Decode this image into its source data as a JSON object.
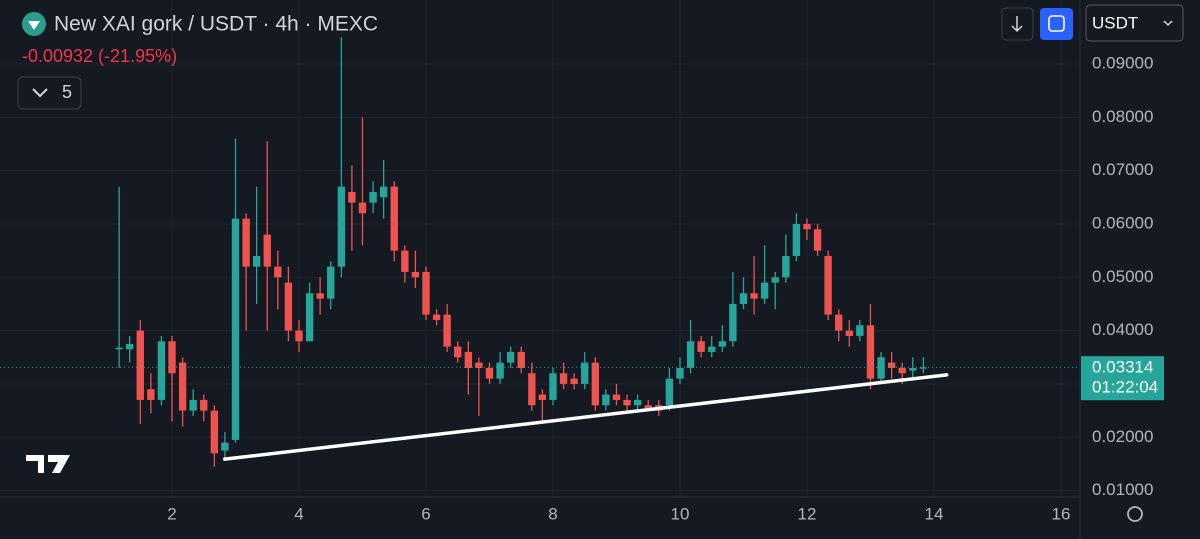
{
  "ui": {
    "indicators": "5",
    "currency": "USDT"
  },
  "chart_data": {
    "type": "candlestick",
    "title": "New XAI gork / USDT · 4h · MEXC",
    "subtitle": "-0.00932 (-21.95%)",
    "x": [
      1.167,
      1.333,
      1.5,
      1.667,
      1.833,
      2,
      2.167,
      2.333,
      2.5,
      2.667,
      2.833,
      3,
      3.167,
      3.333,
      3.5,
      3.667,
      3.833,
      4,
      4.167,
      4.333,
      4.5,
      4.667,
      4.833,
      5,
      5.167,
      5.333,
      5.5,
      5.667,
      5.833,
      6,
      6.167,
      6.333,
      6.5,
      6.667,
      6.833,
      7,
      7.167,
      7.333,
      7.5,
      7.667,
      7.833,
      8,
      8.167,
      8.333,
      8.5,
      8.667,
      8.833,
      9,
      9.167,
      9.333,
      9.5,
      9.667,
      9.833,
      10,
      10.167,
      10.333,
      10.5,
      10.667,
      10.833,
      11,
      11.167,
      11.333,
      11.5,
      11.667,
      11.833,
      12,
      12.167,
      12.333,
      12.5,
      12.667,
      12.833,
      13,
      13.167,
      13.333,
      13.5,
      13.667,
      13.833
    ],
    "open": [
      0.0365,
      0.0365,
      0.04,
      0.029,
      0.027,
      0.038,
      0.034,
      0.025,
      0.027,
      0.025,
      0.0175,
      0.0195,
      0.061,
      0.052,
      0.058,
      0.052,
      0.049,
      0.04,
      0.038,
      0.047,
      0.046,
      0.052,
      0.066,
      0.064,
      0.064,
      0.065,
      0.067,
      0.055,
      0.051,
      0.051,
      0.043,
      0.043,
      0.037,
      0.036,
      0.034,
      0.033,
      0.031,
      0.034,
      0.036,
      0.032,
      0.028,
      0.027,
      0.032,
      0.031,
      0.03,
      0.034,
      0.026,
      0.028,
      0.027,
      0.026,
      0.026,
      0.026,
      0.026,
      0.031,
      0.033,
      0.038,
      0.036,
      0.037,
      0.038,
      0.045,
      0.047,
      0.046,
      0.049,
      0.05,
      0.054,
      0.06,
      0.059,
      0.054,
      0.043,
      0.04,
      0.039,
      0.041,
      0.031,
      0.034,
      0.033,
      0.0325,
      0.033
    ],
    "high": [
      0.067,
      0.039,
      0.042,
      0.032,
      0.039,
      0.039,
      0.035,
      0.029,
      0.028,
      0.026,
      0.021,
      0.076,
      0.062,
      0.067,
      0.0755,
      0.055,
      0.052,
      0.042,
      0.049,
      0.05,
      0.053,
      0.095,
      0.071,
      0.08,
      0.068,
      0.072,
      0.068,
      0.056,
      0.055,
      0.052,
      0.044,
      0.045,
      0.038,
      0.038,
      0.035,
      0.034,
      0.036,
      0.037,
      0.037,
      0.034,
      0.029,
      0.033,
      0.034,
      0.032,
      0.036,
      0.035,
      0.029,
      0.03,
      0.028,
      0.028,
      0.027,
      0.027,
      0.033,
      0.035,
      0.042,
      0.039,
      0.039,
      0.041,
      0.051,
      0.05,
      0.054,
      0.056,
      0.051,
      0.058,
      0.062,
      0.061,
      0.06,
      0.055,
      0.044,
      0.042,
      0.042,
      0.045,
      0.036,
      0.036,
      0.034,
      0.035,
      0.035
    ],
    "low": [
      0.033,
      0.034,
      0.0225,
      0.0245,
      0.026,
      0.023,
      0.022,
      0.024,
      0.023,
      0.0145,
      0.016,
      0.019,
      0.04,
      0.045,
      0.04,
      0.044,
      0.038,
      0.036,
      0.038,
      0.043,
      0.044,
      0.05,
      0.055,
      0.056,
      0.062,
      0.061,
      0.053,
      0.049,
      0.048,
      0.042,
      0.041,
      0.036,
      0.034,
      0.028,
      0.024,
      0.03,
      0.03,
      0.033,
      0.032,
      0.025,
      0.0225,
      0.026,
      0.029,
      0.029,
      0.029,
      0.025,
      0.025,
      0.026,
      0.025,
      0.025,
      0.025,
      0.024,
      0.025,
      0.03,
      0.032,
      0.035,
      0.035,
      0.036,
      0.037,
      0.044,
      0.043,
      0.045,
      0.044,
      0.049,
      0.053,
      0.057,
      0.054,
      0.042,
      0.038,
      0.037,
      0.038,
      0.029,
      0.03,
      0.031,
      0.03,
      0.031,
      0.032
    ],
    "close": [
      0.0368,
      0.0375,
      0.027,
      0.027,
      0.038,
      0.032,
      0.025,
      0.027,
      0.025,
      0.017,
      0.019,
      0.061,
      0.052,
      0.054,
      0.052,
      0.05,
      0.04,
      0.038,
      0.047,
      0.046,
      0.052,
      0.067,
      0.064,
      0.062,
      0.066,
      0.067,
      0.055,
      0.051,
      0.05,
      0.043,
      0.042,
      0.037,
      0.035,
      0.033,
      0.033,
      0.031,
      0.034,
      0.036,
      0.033,
      0.026,
      0.027,
      0.032,
      0.03,
      0.03,
      0.034,
      0.026,
      0.028,
      0.027,
      0.026,
      0.027,
      0.0255,
      0.025,
      0.031,
      0.033,
      0.038,
      0.036,
      0.037,
      0.038,
      0.045,
      0.047,
      0.046,
      0.049,
      0.05,
      0.054,
      0.06,
      0.059,
      0.055,
      0.043,
      0.04,
      0.039,
      0.041,
      0.031,
      0.035,
      0.033,
      0.032,
      0.033,
      0.0331
    ],
    "up_color": "#26a69a",
    "down_color": "#ef5350",
    "xlim": [
      -0.709,
      16.3
    ],
    "xticks": [
      2,
      4,
      6,
      8,
      10,
      12,
      14,
      16
    ],
    "ylim": [
      0.0088,
      0.102
    ],
    "yticks": [
      {
        "value": 0.01,
        "label": "0.01000"
      },
      {
        "value": 0.02,
        "label": "0.02000"
      },
      {
        "value": 0.03,
        "label": "0.03000"
      },
      {
        "value": 0.04,
        "label": "0.04000"
      },
      {
        "value": 0.05,
        "label": "0.05000"
      },
      {
        "value": 0.06,
        "label": "0.06000"
      },
      {
        "value": 0.07,
        "label": "0.07000"
      },
      {
        "value": 0.08,
        "label": "0.08000"
      },
      {
        "value": 0.09,
        "label": "0.09000"
      }
    ],
    "grid": true,
    "last_price": {
      "value": 0.03314,
      "label": "0.03314"
    },
    "countdown": "01:22:04",
    "trendline": {
      "x": [
        2.83,
        14.2
      ],
      "y": [
        0.0159,
        0.0317
      ],
      "color": "#ffffff"
    }
  }
}
